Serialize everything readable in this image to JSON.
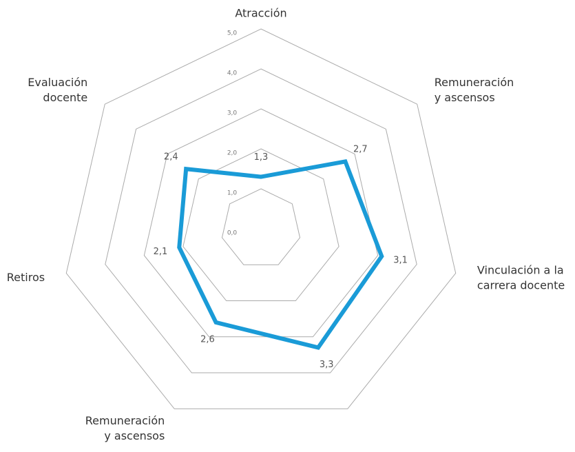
{
  "chart_data": {
    "type": "radar",
    "categories": [
      "Atracción",
      "Remuneración\ny ascensos",
      "Vinculación a la\ncarrera docente",
      null,
      "Remuneración\ny ascensos",
      "Retiros",
      "Evaluación\ndocente"
    ],
    "values": [
      1.3,
      2.7,
      3.1,
      3.3,
      2.6,
      2.1,
      2.4
    ],
    "value_labels": [
      "1,3",
      "2,7",
      "3,1",
      "3,3",
      "2,6",
      "2,1",
      "2,4"
    ],
    "color": "#1a9bd7",
    "ylim": [
      0,
      5
    ],
    "yticks": [
      {
        "value": 0,
        "label": "0,0"
      },
      {
        "value": 1,
        "label": "1,0"
      },
      {
        "value": 2,
        "label": "2,0"
      },
      {
        "value": 3,
        "label": "3,0"
      },
      {
        "value": 4,
        "label": "4,0"
      },
      {
        "value": 5,
        "label": "5,0"
      }
    ]
  }
}
